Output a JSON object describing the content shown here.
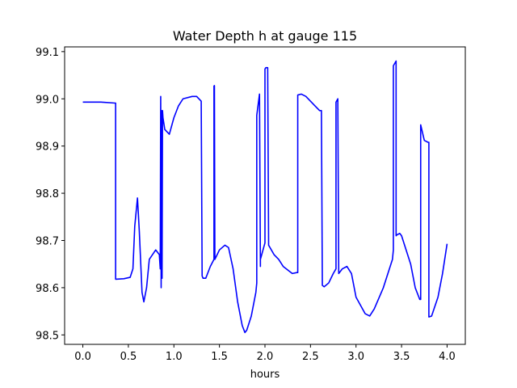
{
  "chart_data": {
    "type": "line",
    "title": "Water Depth h at gauge 115",
    "xlabel": "hours",
    "ylabel": "",
    "xlim": [
      -0.2,
      4.2
    ],
    "ylim": [
      98.48,
      99.11
    ],
    "xticks": [
      0.0,
      0.5,
      1.0,
      1.5,
      2.0,
      2.5,
      3.0,
      3.5,
      4.0
    ],
    "xtick_labels": [
      "0.0",
      "0.5",
      "1.0",
      "1.5",
      "2.0",
      "2.5",
      "3.0",
      "3.5",
      "4.0"
    ],
    "yticks": [
      98.5,
      98.6,
      98.7,
      98.8,
      98.9,
      99.0,
      99.1
    ],
    "ytick_labels": [
      "98.5",
      "98.6",
      "98.7",
      "98.8",
      "98.9",
      "99.0",
      "99.1"
    ],
    "grid": false,
    "series": [
      {
        "color": "#0000ff",
        "x": [
          0.0,
          0.2,
          0.35,
          0.36,
          0.36,
          0.45,
          0.52,
          0.55,
          0.57,
          0.6,
          0.62,
          0.65,
          0.67,
          0.7,
          0.73,
          0.8,
          0.84,
          0.85,
          0.855,
          0.86,
          0.865,
          0.87,
          0.875,
          0.88,
          0.9,
          0.95,
          1.0,
          1.05,
          1.1,
          1.2,
          1.25,
          1.3,
          1.31,
          1.32,
          1.35,
          1.4,
          1.44,
          1.44,
          1.445,
          1.45,
          1.5,
          1.56,
          1.6,
          1.65,
          1.7,
          1.75,
          1.78,
          1.8,
          1.85,
          1.9,
          1.91,
          1.91,
          1.94,
          1.95,
          1.95,
          2.0,
          2.0,
          2.01,
          2.03,
          2.04,
          2.04,
          2.1,
          2.15,
          2.2,
          2.3,
          2.35,
          2.36,
          2.36,
          2.4,
          2.45,
          2.5,
          2.55,
          2.6,
          2.62,
          2.63,
          2.63,
          2.65,
          2.7,
          2.75,
          2.78,
          2.78,
          2.8,
          2.81,
          2.81,
          2.85,
          2.9,
          2.95,
          3.0,
          3.1,
          3.15,
          3.2,
          3.3,
          3.4,
          3.41,
          3.41,
          3.44,
          3.44,
          3.45,
          3.48,
          3.5,
          3.6,
          3.65,
          3.7,
          3.71,
          3.71,
          3.74,
          3.75,
          3.79,
          3.8,
          3.8,
          3.83,
          3.9,
          3.95,
          4.0
        ],
        "y": [
          98.993,
          98.993,
          98.991,
          98.991,
          98.618,
          98.619,
          98.622,
          98.64,
          98.73,
          98.79,
          98.72,
          98.59,
          98.57,
          98.6,
          98.66,
          98.68,
          98.67,
          98.64,
          99.005,
          98.6,
          98.975,
          98.62,
          98.975,
          98.96,
          98.935,
          98.925,
          98.96,
          98.985,
          99.0,
          99.005,
          99.005,
          98.995,
          98.625,
          98.62,
          98.62,
          98.645,
          98.66,
          99.027,
          99.028,
          98.66,
          98.68,
          98.69,
          98.685,
          98.64,
          98.57,
          98.52,
          98.505,
          98.51,
          98.54,
          98.59,
          98.61,
          98.965,
          99.01,
          98.645,
          98.66,
          98.695,
          99.063,
          99.066,
          99.066,
          98.695,
          98.69,
          98.67,
          98.66,
          98.645,
          98.63,
          98.632,
          98.632,
          99.008,
          99.01,
          99.005,
          98.995,
          98.985,
          98.975,
          98.975,
          98.61,
          98.605,
          98.602,
          98.61,
          98.63,
          98.64,
          98.993,
          99.0,
          98.63,
          98.63,
          98.64,
          98.645,
          98.63,
          98.58,
          98.545,
          98.54,
          98.555,
          98.6,
          98.66,
          98.68,
          99.07,
          99.08,
          98.71,
          98.712,
          98.715,
          98.71,
          98.65,
          98.6,
          98.575,
          98.575,
          98.945,
          98.92,
          98.912,
          98.908,
          98.908,
          98.538,
          98.54,
          98.58,
          98.63,
          98.693
        ]
      }
    ]
  }
}
